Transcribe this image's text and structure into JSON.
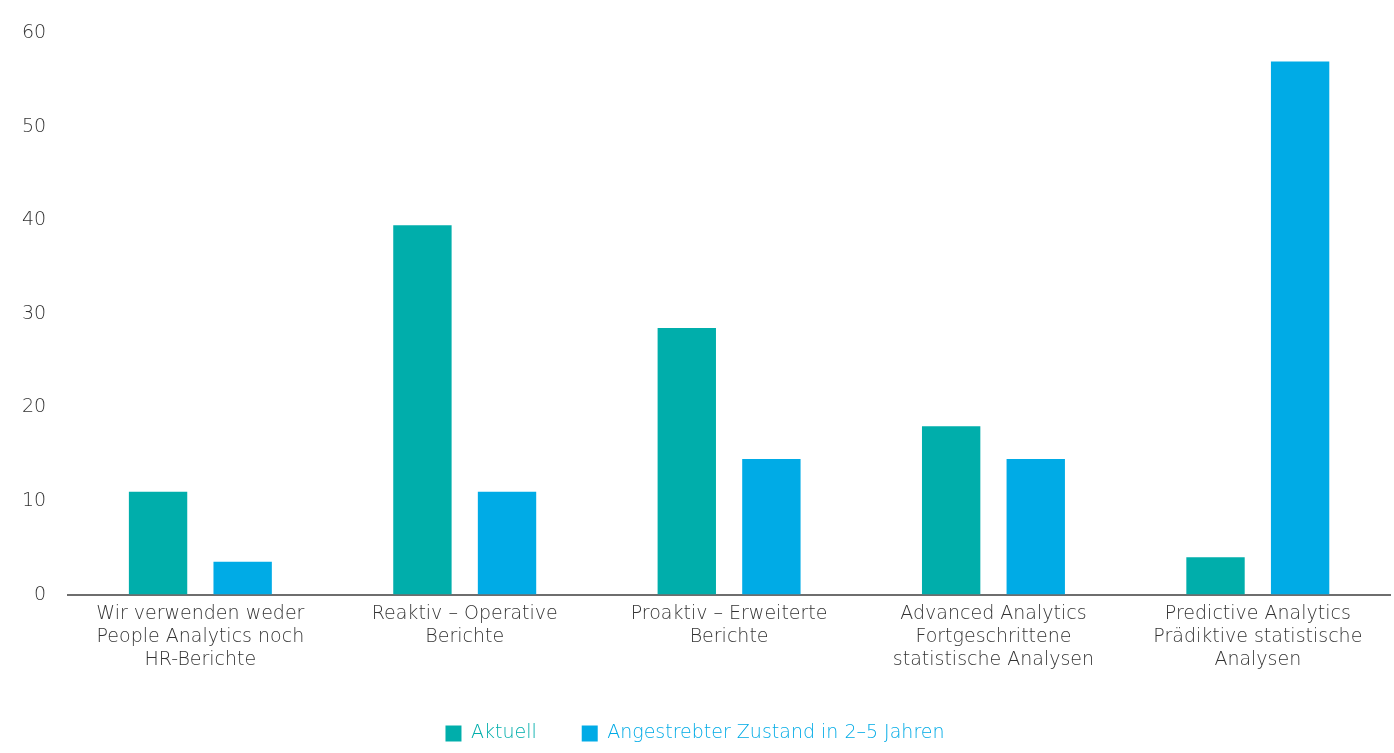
{
  "chart_data": {
    "type": "bar",
    "categories": [
      "Wir verwenden weder\nPeople Analytics noch\nHR-Berichte",
      "Reaktiv – Operative\nBerichte",
      "Proaktiv – Erweiterte\nBerichte",
      "Advanced Analytics\nFortgeschrittene\nstatistische Analysen",
      "Predictive Analytics\nPrädiktive statistische\nAnalysen"
    ],
    "series": [
      {
        "name": "Aktuell",
        "color": "#00aeab",
        "values": [
          11,
          39.5,
          28.5,
          18,
          4
        ]
      },
      {
        "name": "Angestrebter Zustand in 2–5 Jahren",
        "color": "#00abe6",
        "values": [
          3.5,
          11,
          14.5,
          14.5,
          57
        ]
      }
    ],
    "ylim": [
      0,
      60
    ],
    "yticks": [
      0,
      10,
      20,
      30,
      40,
      50,
      60
    ],
    "grid": false,
    "legend": "bottom"
  }
}
